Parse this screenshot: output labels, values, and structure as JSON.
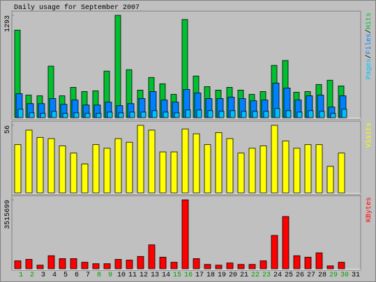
{
  "chart_data": [
    {
      "type": "bar",
      "title": "Daily usage for September 2007",
      "ylim": [
        0,
        1293
      ],
      "yticks": [
        1293
      ],
      "legend_separator": "/",
      "series": [
        {
          "name": "Hits",
          "color": "#00c030",
          "values": [
            1106,
            285,
            276,
            651,
            276,
            383,
            330,
            339,
            588,
            1293,
            606,
            348,
            508,
            428,
            294,
            1240,
            526,
            392,
            348,
            383,
            348,
            294,
            330,
            660,
            722,
            321,
            330,
            419,
            473,
            401,
            null
          ]
        },
        {
          "name": "Files",
          "color": "#0080ff",
          "values": [
            303,
            178,
            178,
            241,
            169,
            223,
            160,
            160,
            196,
            152,
            178,
            241,
            330,
            223,
            196,
            357,
            312,
            241,
            241,
            259,
            241,
            214,
            223,
            437,
            375,
            223,
            276,
            285,
            134,
            276,
            null
          ]
        },
        {
          "name": "Pages",
          "color": "#00c0ff",
          "values": [
            107,
            62,
            54,
            80,
            54,
            62,
            54,
            54,
            71,
            62,
            71,
            71,
            89,
            71,
            62,
            98,
            98,
            89,
            80,
            89,
            80,
            80,
            80,
            116,
            89,
            71,
            89,
            80,
            54,
            107,
            null
          ]
        }
      ]
    },
    {
      "type": "bar",
      "ylim": [
        0,
        56
      ],
      "yticks": [
        56
      ],
      "series": [
        {
          "name": "Visits",
          "color": "#ffff00",
          "values": [
            40,
            52,
            46,
            45,
            39,
            33,
            24,
            40,
            37,
            45,
            42,
            56,
            52,
            34,
            34,
            53,
            49,
            40,
            50,
            45,
            33,
            37,
            39,
            56,
            43,
            37,
            40,
            40,
            22,
            33,
            null
          ]
        }
      ]
    },
    {
      "type": "bar",
      "ylim": [
        0,
        3515699
      ],
      "yticks": [
        3515699
      ],
      "categories": [
        "1",
        "2",
        "3",
        "4",
        "5",
        "6",
        "7",
        "8",
        "9",
        "10",
        "11",
        "12",
        "13",
        "14",
        "15",
        "16",
        "17",
        "18",
        "19",
        "20",
        "21",
        "22",
        "23",
        "24",
        "25",
        "26",
        "27",
        "28",
        "29",
        "30",
        "31"
      ],
      "category_colors": [
        "#00a000",
        "#00a000",
        "#000000",
        "#000000",
        "#000000",
        "#000000",
        "#000000",
        "#00a000",
        "#00a000",
        "#000000",
        "#000000",
        "#000000",
        "#000000",
        "#000000",
        "#00a000",
        "#00a000",
        "#000000",
        "#000000",
        "#000000",
        "#000000",
        "#000000",
        "#00a000",
        "#00a000",
        "#000000",
        "#000000",
        "#000000",
        "#000000",
        "#000000",
        "#00a000",
        "#00a000",
        "#000000"
      ],
      "series": [
        {
          "name": "KBytes",
          "color": "#ff0000",
          "values": [
            407000,
            481000,
            185000,
            666000,
            518000,
            518000,
            333000,
            259000,
            259000,
            481000,
            444000,
            629000,
            1221000,
            592000,
            333000,
            3515699,
            518000,
            222000,
            185000,
            296000,
            222000,
            222000,
            407000,
            1702000,
            2665000,
            666000,
            592000,
            814000,
            148000,
            333000,
            null
          ]
        }
      ]
    }
  ]
}
